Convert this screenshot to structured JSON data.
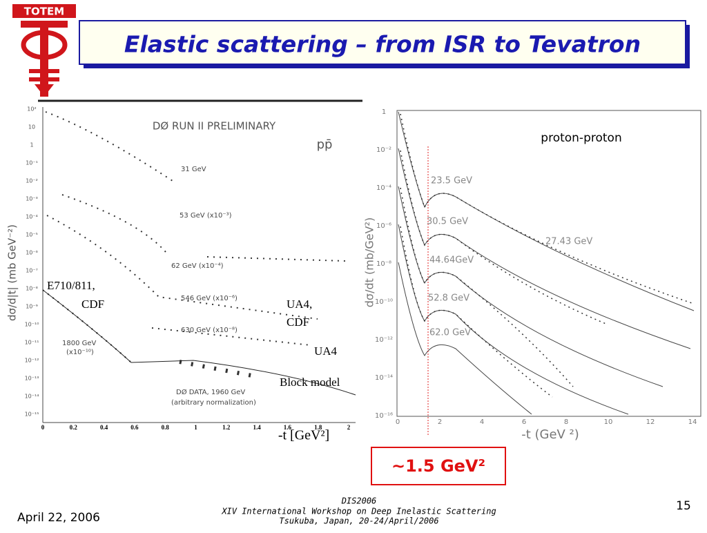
{
  "logo": "TOTEM",
  "title": "Elastic scattering – from ISR to Tevatron",
  "left_plot": {
    "heading": "DØ RUN II PRELIMINARY",
    "process": "pp̄",
    "y_label": "dσ/d|t| (mb GeV⁻²)",
    "x_label": "-t [GeV²]",
    "x_ticks": [
      "0",
      "0.2",
      "0.4",
      "0.6",
      "0.8",
      "1",
      "1.2",
      "1.4",
      "1.6",
      "1.8",
      "2"
    ],
    "y_ticks": [
      "10²",
      "10",
      "1",
      "10⁻¹",
      "10⁻²",
      "10⁻³",
      "10⁻⁴",
      "10⁻⁵",
      "10⁻⁶",
      "10⁻⁷",
      "10⁻⁸",
      "10⁻⁹",
      "10⁻¹⁰",
      "10⁻¹¹",
      "10⁻¹²",
      "10⁻¹³",
      "10⁻¹⁴",
      "10⁻¹⁵"
    ],
    "curve_labels": [
      "31 GeV",
      "53 GeV (x10⁻³)",
      "62 GeV (x10⁻⁴)",
      "546 GeV (x10⁻⁶)",
      "630 GeV (x10⁻⁸)",
      "1800 GeV",
      "(x10⁻¹⁰)",
      "DØ DATA, 1960 GeV",
      "(arbitrary normalization)"
    ],
    "annotations": [
      "E710/811,",
      "CDF",
      "UA4,",
      "CDF",
      "UA4",
      "Block model"
    ]
  },
  "right_plot": {
    "heading": "proton-proton",
    "y_label": "dσ/dt (mb/GeV²)",
    "x_label": "-t (GeV ²)",
    "x_ticks": [
      "0",
      "2",
      "4",
      "6",
      "8",
      "10",
      "12",
      "14"
    ],
    "y_ticks": [
      "1",
      "10⁻²",
      "10⁻⁴",
      "10⁻⁶",
      "10⁻⁸",
      "10⁻¹⁰",
      "10⁻¹²",
      "10⁻¹⁴",
      "10⁻¹⁶"
    ],
    "curve_labels": [
      "23.5 GeV",
      "30.5 GeV",
      "44.64GeV",
      "52.8 GeV",
      "62.0 GeV",
      "27.43 GeV"
    ]
  },
  "callout": "~1.5 GeV²",
  "footer": {
    "date": "April 22, 2006",
    "conference": "DIS2006",
    "workshop": "XIV International Workshop on Deep Inelastic Scattering",
    "place": "Tsukuba, Japan, 20-24/April/2006",
    "page": "15"
  }
}
